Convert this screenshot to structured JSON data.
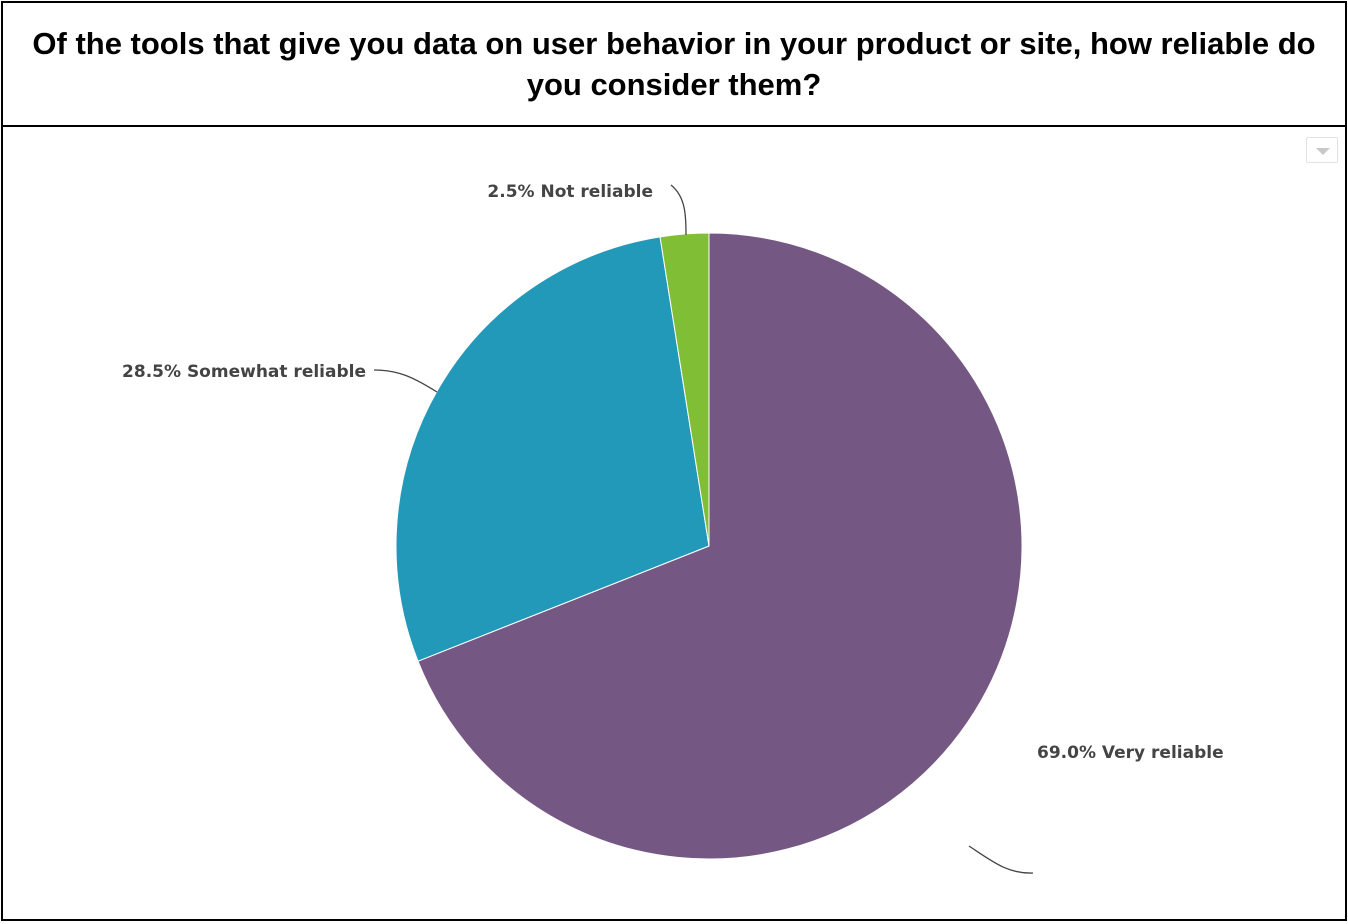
{
  "title": "Of the tools that give you data on user behavior in your product or site, how reliable do you consider them?",
  "chart_data": {
    "type": "pie",
    "slices": [
      {
        "label": "Very reliable",
        "value": 69.0,
        "display": "69.0% Very reliable",
        "color": "#745782"
      },
      {
        "label": "Somewhat reliable",
        "value": 28.5,
        "display": "28.5% Somewhat reliable",
        "color": "#2399b9"
      },
      {
        "label": "Not reliable",
        "value": 2.5,
        "display": "2.5% Not reliable",
        "color": "#80bf35"
      }
    ],
    "start_angle": "12 o'clock",
    "direction": "clockwise",
    "legend": "none",
    "labels": "outside with leader lines"
  }
}
